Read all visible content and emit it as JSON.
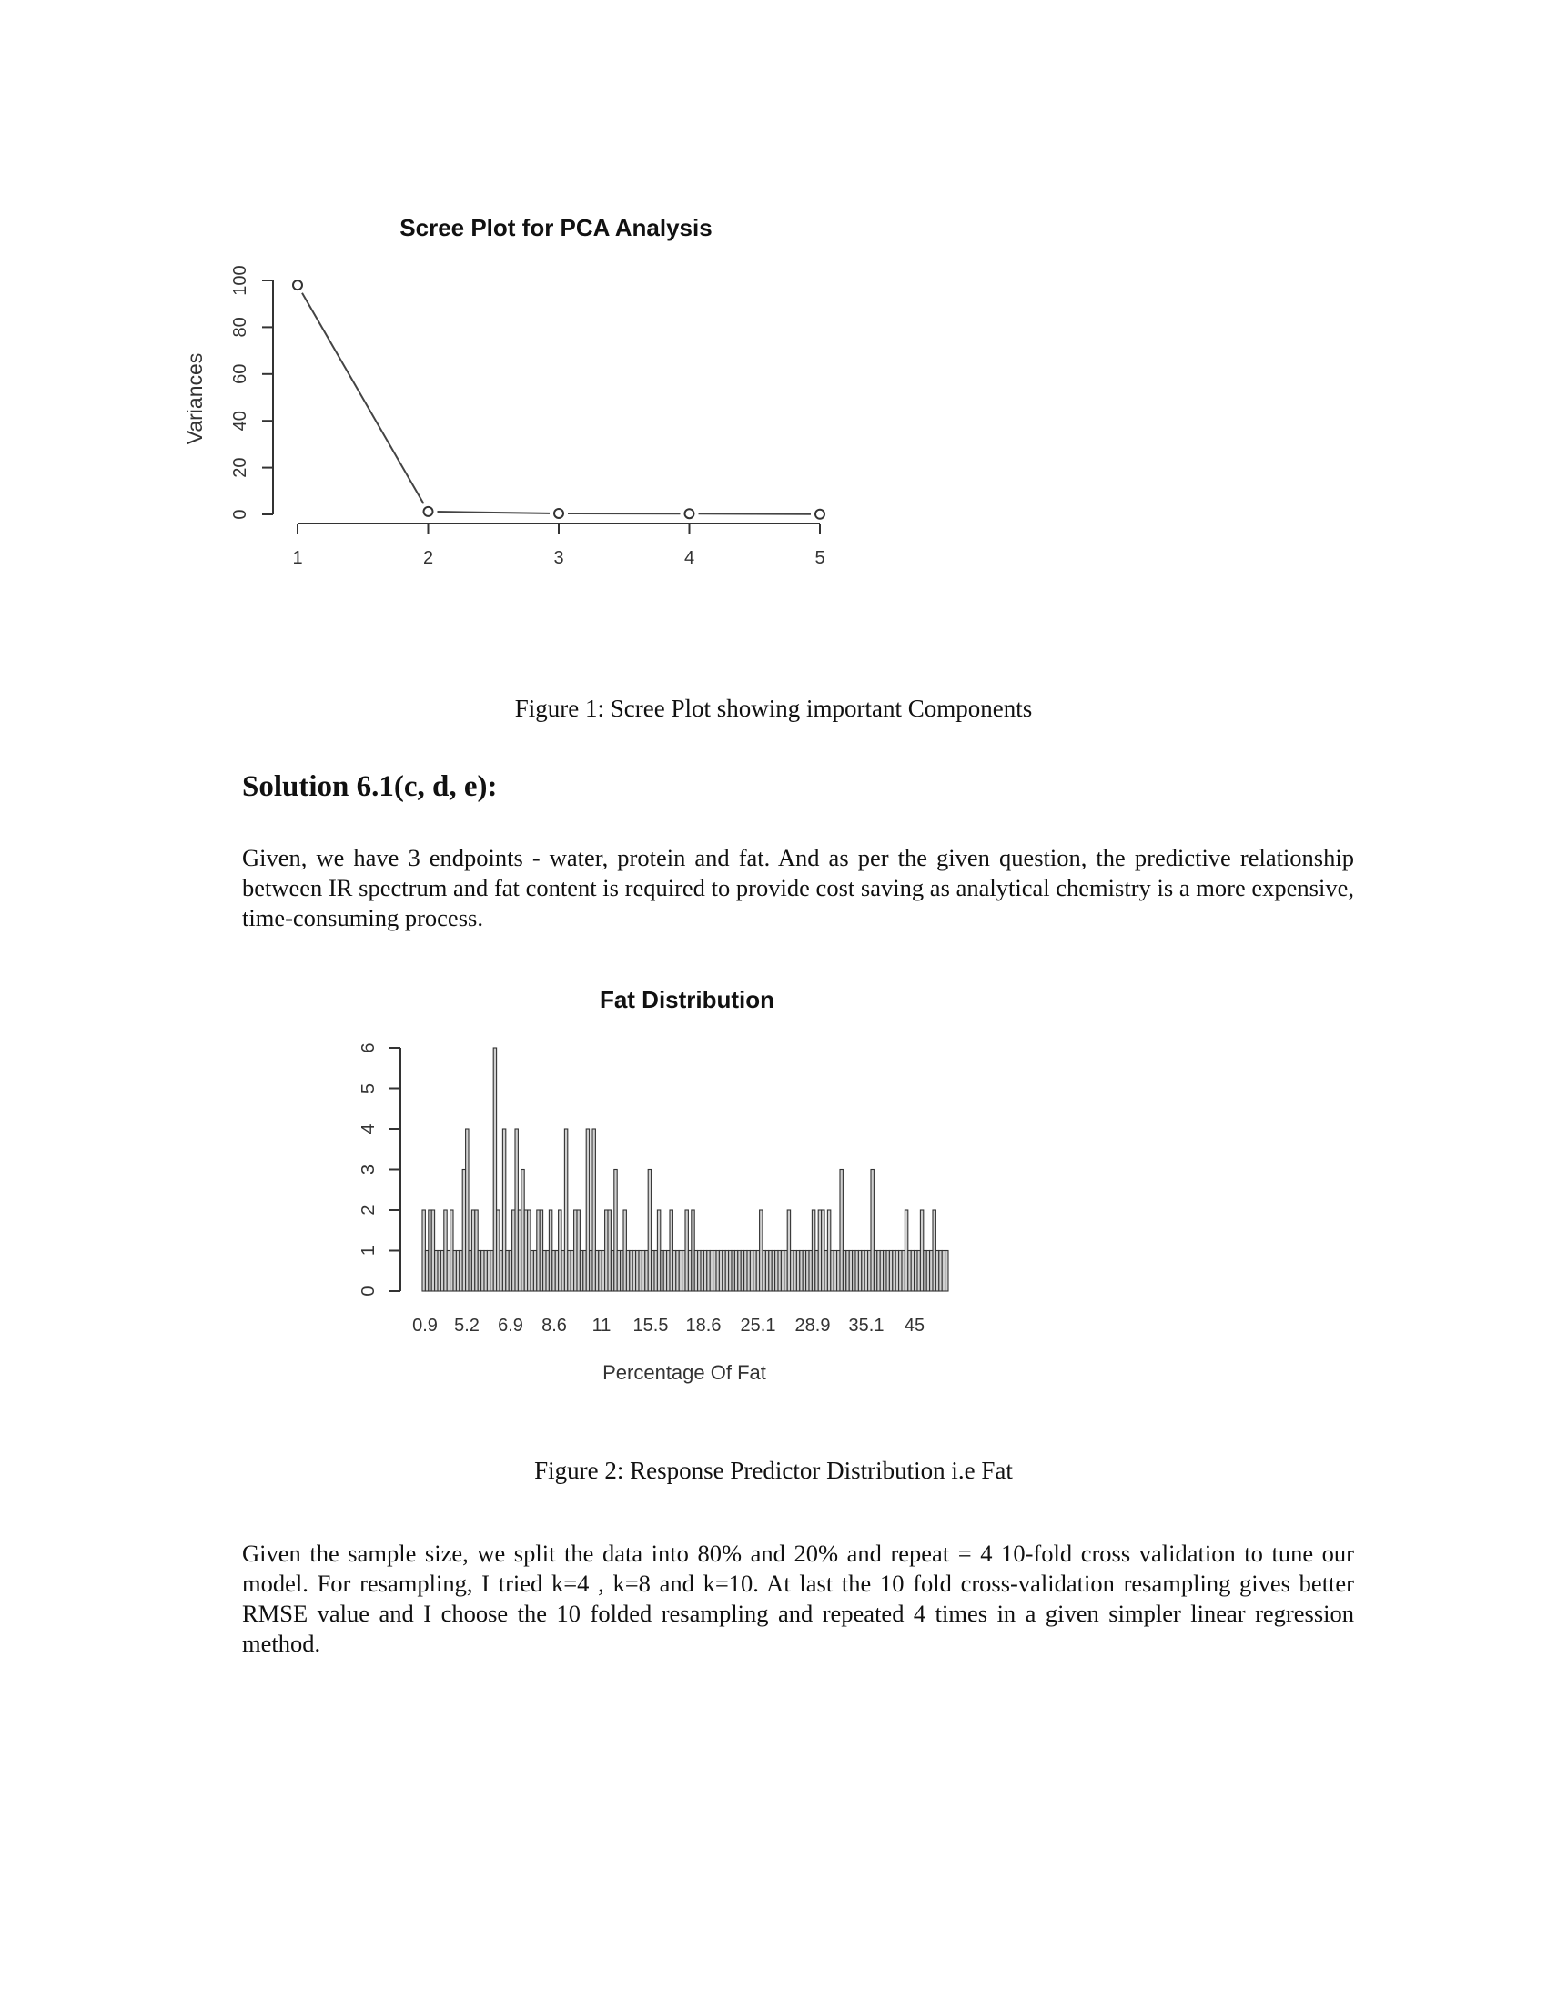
{
  "figure1": {
    "caption": "Figure 1: Scree Plot showing important Components"
  },
  "figure2": {
    "caption": "Figure 2: Response Predictor Distribution i.e Fat"
  },
  "section": {
    "heading": "Solution 6.1(c, d, e):",
    "paragraph1": "Given, we have 3 endpoints - water, protein and fat. And as per the given question, the predictive relationship between IR spectrum and fat content is required to provide cost saving as analytical chemistry is a more expensive, time-consuming process.",
    "paragraph2": "Given the sample size, we split the data into 80% and 20% and repeat = 4 10-fold cross validation to tune our model. For resampling, I tried k=4 , k=8 and k=10. At last the 10 fold cross-validation resampling gives better RMSE value and I choose the 10 folded resampling and repeated 4 times in a given simpler linear regression method."
  },
  "chart_data": [
    {
      "type": "line",
      "title": "Scree Plot for PCA Analysis",
      "xlabel": "",
      "ylabel": "Variances",
      "x": [
        1,
        2,
        3,
        4,
        5
      ],
      "y": [
        98,
        1.2,
        0.4,
        0.3,
        0.1
      ],
      "xticks": [
        "1",
        "2",
        "3",
        "4",
        "5"
      ],
      "yticks": [
        "0",
        "20",
        "40",
        "60",
        "80",
        "100"
      ],
      "ylim": [
        0,
        100
      ],
      "markers": "open-circle",
      "grid": false
    },
    {
      "type": "bar",
      "title": "Fat Distribution",
      "xlabel": "Percentage Of Fat",
      "ylabel": "",
      "xticks": [
        "0.9",
        "5.2",
        "6.9",
        "8.6",
        "11",
        "15.5",
        "18.6",
        "25.1",
        "28.9",
        "35.1",
        "45"
      ],
      "yticks": [
        "0",
        "1",
        "2",
        "3",
        "4",
        "5",
        "6"
      ],
      "ylim": [
        0,
        6
      ],
      "values": [
        2,
        1,
        2,
        2,
        1,
        1,
        1,
        2,
        1,
        2,
        1,
        1,
        1,
        3,
        4,
        1,
        2,
        2,
        1,
        1,
        1,
        1,
        1,
        6,
        2,
        1,
        4,
        1,
        1,
        2,
        4,
        2,
        3,
        2,
        2,
        1,
        1,
        2,
        2,
        1,
        1,
        2,
        1,
        1,
        2,
        1,
        4,
        1,
        1,
        2,
        2,
        1,
        1,
        4,
        1,
        4,
        1,
        1,
        1,
        2,
        2,
        1,
        3,
        1,
        1,
        2,
        1,
        1,
        1,
        1,
        1,
        1,
        1,
        3,
        1,
        1,
        2,
        1,
        1,
        1,
        2,
        1,
        1,
        1,
        1,
        2,
        1,
        2,
        1,
        1,
        1,
        1,
        1,
        1,
        1,
        1,
        1,
        1,
        1,
        1,
        1,
        1,
        1,
        1,
        1,
        1,
        1,
        1,
        1,
        2,
        1,
        1,
        1,
        1,
        1,
        1,
        1,
        1,
        2,
        1,
        1,
        1,
        1,
        1,
        1,
        1,
        2,
        1,
        2,
        2,
        1,
        2,
        1,
        1,
        1,
        3,
        1,
        1,
        1,
        1,
        1,
        1,
        1,
        1,
        1,
        3,
        1,
        1,
        1,
        1,
        1,
        1,
        1,
        1,
        1,
        1,
        2,
        1,
        1,
        1,
        1,
        2,
        1,
        1,
        1,
        2,
        1,
        1,
        1,
        1
      ]
    }
  ]
}
